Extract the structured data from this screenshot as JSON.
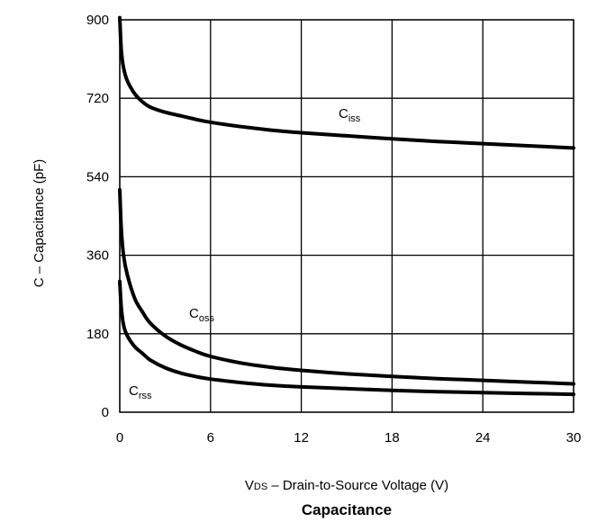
{
  "chart_data": {
    "type": "line",
    "title": "Capacitance",
    "xlabel": {
      "main": "V",
      "sub": "DS",
      "rest": " – Drain-to-Source Voltage (V)"
    },
    "ylabel": "C  –  Capacitance (pF)",
    "xlim": [
      0,
      30
    ],
    "ylim": [
      0,
      900
    ],
    "xticks": [
      "0",
      "6",
      "12",
      "18",
      "24",
      "30"
    ],
    "yticks": [
      "0",
      "180",
      "360",
      "540",
      "720",
      "900"
    ],
    "grid": true,
    "series": [
      {
        "name": "Ciss",
        "label_main": "C",
        "label_sub": "iss",
        "x": [
          0,
          0.1,
          0.25,
          0.5,
          1,
          1.5,
          2,
          3,
          4,
          5,
          6,
          8,
          10,
          12,
          15,
          18,
          21,
          24,
          27,
          30
        ],
        "y": [
          905,
          830,
          790,
          760,
          730,
          712,
          700,
          688,
          680,
          672,
          665,
          655,
          647,
          641,
          634,
          627,
          621,
          616,
          611,
          606
        ]
      },
      {
        "name": "Coss",
        "label_main": "C",
        "label_sub": "oss",
        "x": [
          0,
          0.1,
          0.25,
          0.5,
          1,
          1.5,
          2,
          3,
          4,
          5,
          6,
          8,
          10,
          12,
          15,
          18,
          21,
          24,
          27,
          30
        ],
        "y": [
          510,
          420,
          360,
          315,
          260,
          230,
          205,
          175,
          155,
          140,
          128,
          113,
          103,
          96,
          88,
          82,
          77,
          73,
          69,
          65
        ]
      },
      {
        "name": "Crss",
        "label_main": "C",
        "label_sub": "rss",
        "x": [
          0,
          0.1,
          0.25,
          0.5,
          1,
          1.5,
          2,
          3,
          4,
          5,
          6,
          8,
          10,
          12,
          15,
          18,
          21,
          24,
          27,
          30
        ],
        "y": [
          300,
          240,
          200,
          175,
          150,
          135,
          120,
          102,
          90,
          82,
          76,
          68,
          62,
          58,
          54,
          50,
          47,
          45,
          43,
          41
        ]
      }
    ]
  }
}
